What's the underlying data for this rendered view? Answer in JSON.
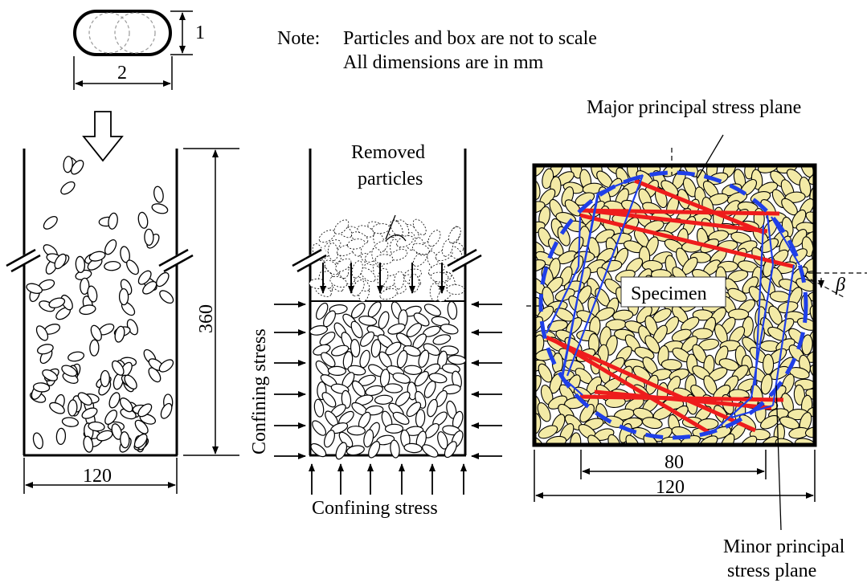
{
  "particle": {
    "height_label": "1",
    "width_label": "2"
  },
  "note": {
    "label": "Note:",
    "line1": "Particles and box are not to scale",
    "line2": "All dimensions are in mm"
  },
  "panel1": {
    "height_label": "360",
    "width_label": "120"
  },
  "panel2": {
    "removed_line1": "Removed",
    "removed_line2": "particles",
    "confining_side": "Confining stress",
    "confining_bottom": "Confining stress"
  },
  "panel3": {
    "major_plane": "Major principal stress plane",
    "specimen": "Specimen",
    "beta": "β",
    "inner_width": "80",
    "outer_width": "120",
    "minor_line1": "Minor principal",
    "minor_line2": "stress plane"
  },
  "colors": {
    "particle_fill": "#f3eaa6",
    "red_force": "#ee1c1c",
    "blue_force": "#1f3fe8",
    "dashed_circle": "#1f3fe8"
  }
}
